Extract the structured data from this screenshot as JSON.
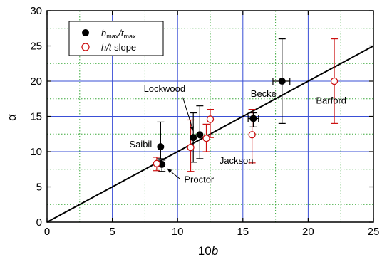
{
  "chart_data": {
    "type": "scatter",
    "xlabel_main": "10",
    "xlabel_var": "b",
    "ylabel": "α",
    "xlim": [
      0,
      25
    ],
    "ylim": [
      0,
      30
    ],
    "xticks": [
      0,
      5,
      10,
      15,
      20,
      25
    ],
    "yticks": [
      0,
      5,
      10,
      15,
      20,
      25,
      30
    ],
    "grid_major": "solid blue",
    "grid_minor": "dotted green",
    "legend_position": "top-left",
    "colors": {
      "series1": "#000000",
      "series2": "#cc1111",
      "fit": "#000000",
      "grid_major": "#3a4fd6",
      "grid_minor": "#3aa83a"
    },
    "series": [
      {
        "name_main": "h",
        "name_sub1": "max",
        "name_mid": "/t",
        "name_sub2": "max",
        "marker": "filled-circle",
        "points": [
          {
            "x": 8.7,
            "y": 10.7,
            "yerr": [
              9.0,
              14.2
            ]
          },
          {
            "x": 8.8,
            "y": 8.2,
            "yerr": [
              7.2,
              8.8
            ]
          },
          {
            "x": 11.2,
            "y": 12.0,
            "yerr": [
              8.5,
              15.5
            ]
          },
          {
            "x": 11.7,
            "y": 12.4,
            "yerr": [
              9.0,
              16.5
            ]
          },
          {
            "x": 15.8,
            "y": 14.7,
            "yerr": [
              13.5,
              15.5
            ],
            "xerr": [
              15.4,
              16.2
            ]
          },
          {
            "x": 18.0,
            "y": 20.0,
            "yerr": [
              14.0,
              26.0
            ],
            "xerr": [
              17.3,
              18.6
            ]
          }
        ]
      },
      {
        "name_main": "h",
        "name_mid": "/t",
        "name_rest": " slope",
        "marker": "open-circle",
        "points": [
          {
            "x": 8.4,
            "y": 8.3,
            "yerr": [
              7.3,
              9.2
            ]
          },
          {
            "x": 11.0,
            "y": 10.6,
            "yerr": [
              7.2,
              14.5
            ]
          },
          {
            "x": 12.2,
            "y": 11.9,
            "yerr": [
              10.0,
              13.9
            ]
          },
          {
            "x": 12.5,
            "y": 14.6,
            "yerr": [
              12.0,
              16.0
            ]
          },
          {
            "x": 15.7,
            "y": 12.4,
            "yerr": [
              8.4,
              16.0
            ]
          },
          {
            "x": 22.0,
            "y": 20.0,
            "yerr": [
              14.0,
              26.0
            ]
          }
        ]
      }
    ],
    "fit_line": {
      "x": [
        0,
        25
      ],
      "y": [
        0,
        25
      ]
    },
    "annotations": [
      {
        "text": "Lockwood",
        "x": 7.4,
        "y": 18.5
      },
      {
        "text": "Becke",
        "x": 15.6,
        "y": 17.8
      },
      {
        "text": "Barford",
        "x": 20.6,
        "y": 16.8
      },
      {
        "text": "Saibil",
        "x": 6.3,
        "y": 10.6
      },
      {
        "text": "Jackson",
        "x": 13.2,
        "y": 8.3
      },
      {
        "text": "Proctor",
        "x": 10.5,
        "y": 5.6
      }
    ]
  }
}
